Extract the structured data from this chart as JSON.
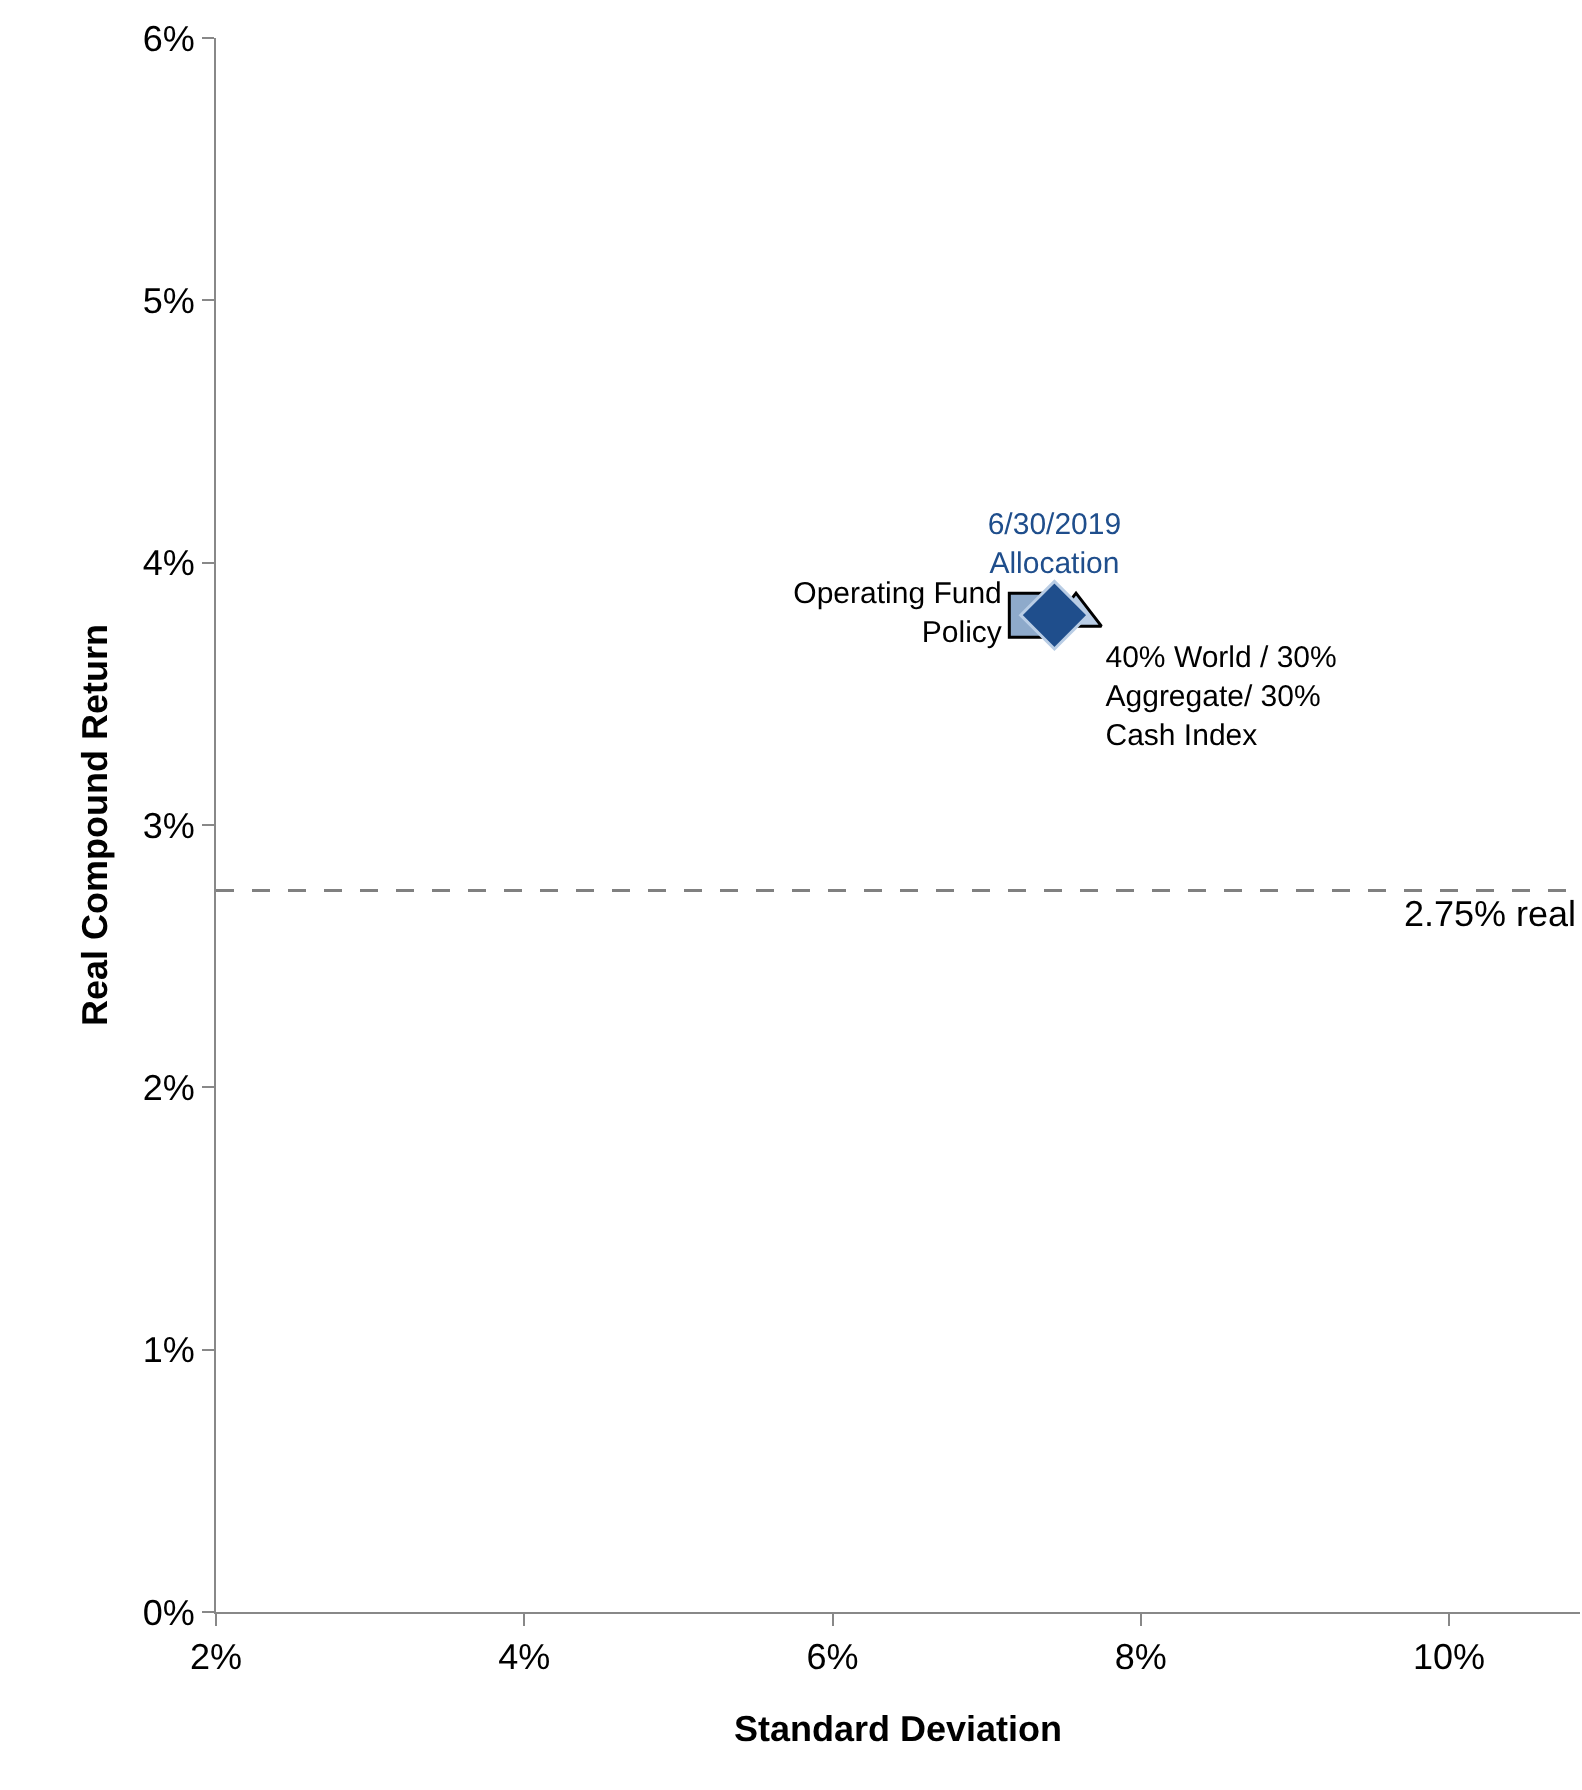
{
  "chart_data": {
    "type": "scatter",
    "xlabel": "Standard Deviation",
    "ylabel": "Real Compound Return",
    "xlim": [
      2,
      10.85
    ],
    "xticks": [
      {
        "value": 2,
        "label": "2%"
      },
      {
        "value": 4,
        "label": "4%"
      },
      {
        "value": 6,
        "label": "6%"
      },
      {
        "value": 8,
        "label": "8%"
      },
      {
        "value": 10,
        "label": "10%"
      }
    ],
    "ylim": [
      0,
      6
    ],
    "yticks": [
      {
        "value": 0,
        "label": "0%"
      },
      {
        "value": 1,
        "label": "1%"
      },
      {
        "value": 2,
        "label": "2%"
      },
      {
        "value": 3,
        "label": "3%"
      },
      {
        "value": 4,
        "label": "4%"
      },
      {
        "value": 5,
        "label": "5%"
      },
      {
        "value": 6,
        "label": "6%"
      }
    ],
    "grid": false,
    "legend": false,
    "series": [
      {
        "name": "Operating Fund Policy",
        "color": "#8eaacb",
        "marker": "square",
        "x": [
          7.29
        ],
        "values": [
          3.8
        ]
      },
      {
        "name": "40% World / 30% Aggregate/ 30% Cash Index",
        "color": "#b9cde5",
        "marker": "triangle",
        "x": [
          7.58
        ],
        "values": [
          3.8
        ]
      },
      {
        "name": "6/30/2019 Allocation",
        "color": "#1f4e8c",
        "marker": "diamond",
        "x": [
          7.44
        ],
        "values": [
          3.8
        ]
      }
    ],
    "ref_lines": [
      {
        "axis": "y",
        "value": 2.75,
        "label": "2.75% real",
        "color": "#808080",
        "line_style": "dashed"
      }
    ]
  }
}
